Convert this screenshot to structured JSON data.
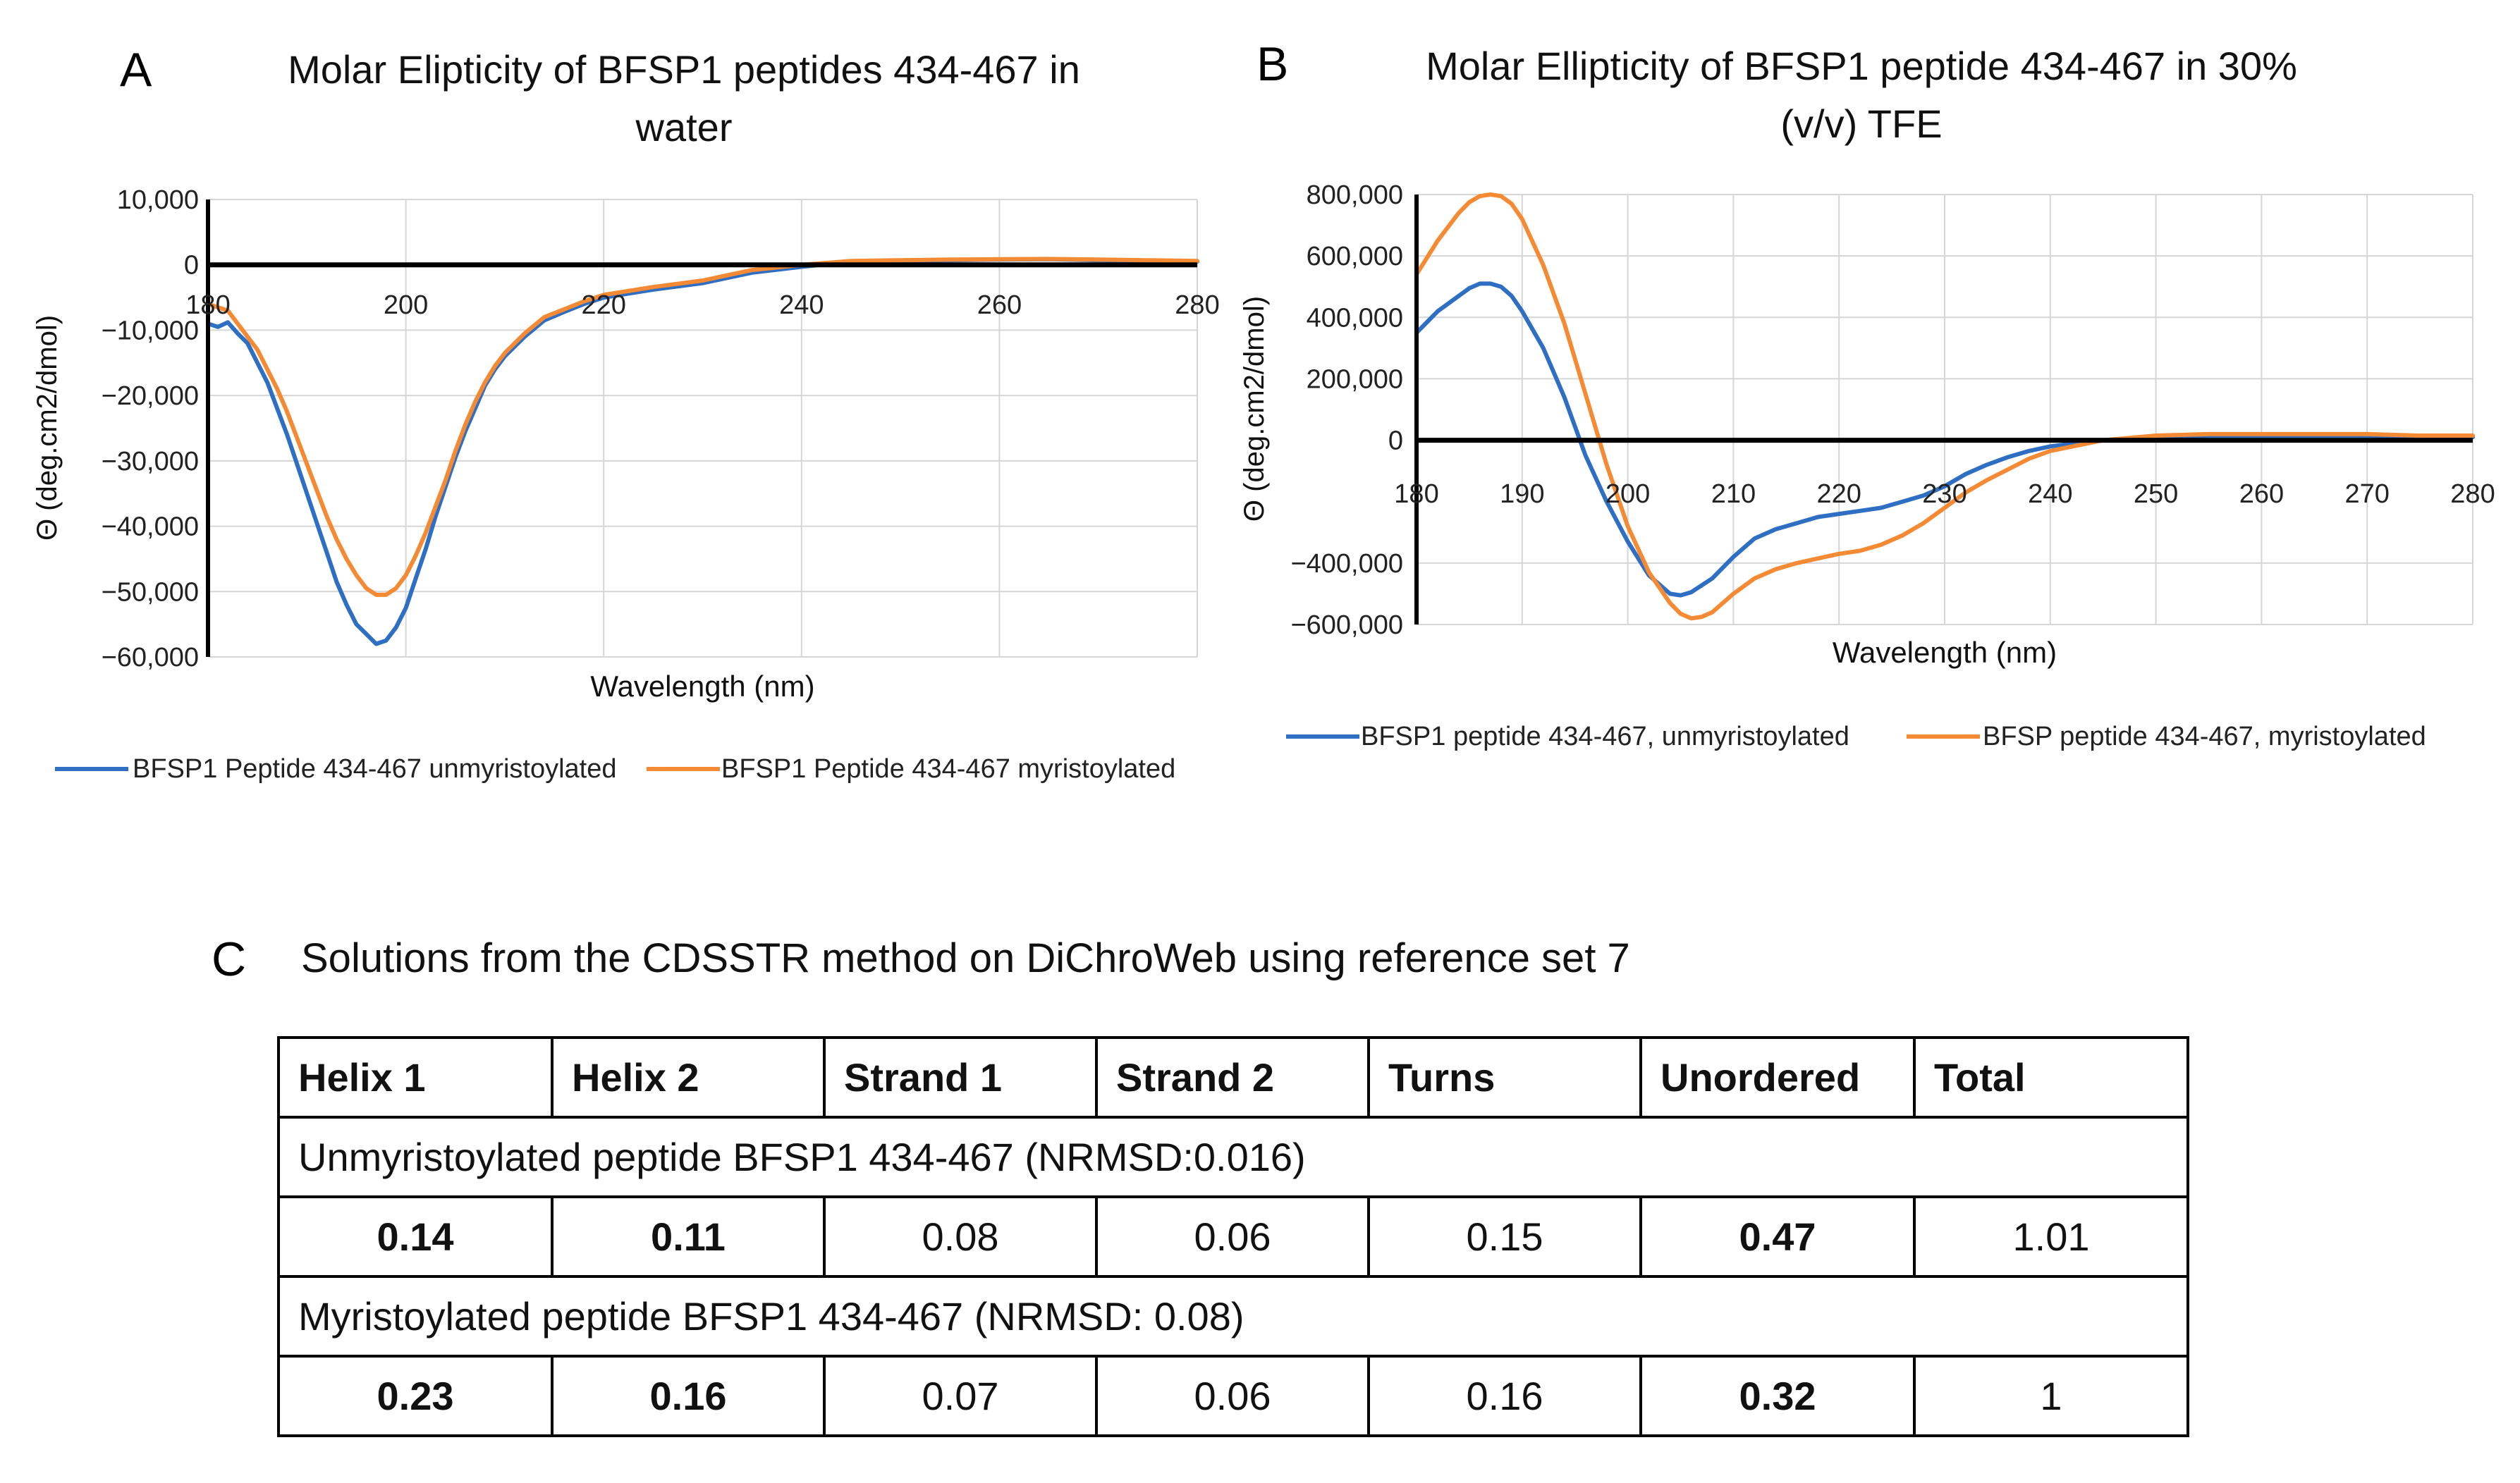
{
  "panels": {
    "a_letter": "A",
    "b_letter": "B",
    "c_letter": "C"
  },
  "chart_data": [
    {
      "type": "line",
      "title": "Molar Elipticity of BFSP1 peptides 434-467 in water",
      "title_lines": [
        "Molar Elipticity of BFSP1 peptides 434-467 in",
        "water"
      ],
      "xlabel": "Wavelength (nm)",
      "ylabel": "Θ (deg.cm2/dmol)",
      "xlim": [
        180,
        280
      ],
      "ylim": [
        -60000,
        10000
      ],
      "xticks": [
        180,
        200,
        220,
        240,
        260,
        280
      ],
      "xtick_labels": [
        "180",
        "200",
        "220",
        "240",
        "260",
        "280"
      ],
      "yticks": [
        10000,
        0,
        -10000,
        -20000,
        -30000,
        -40000,
        -50000,
        -60000
      ],
      "ytick_labels": [
        "10,000",
        "0",
        "−10,000",
        "−20,000",
        "−30,000",
        "−40,000",
        "−50,000",
        "−60,000"
      ],
      "grid": true,
      "legend": "bottom",
      "series": [
        {
          "name": "BFSP1 Peptide 434-467 unmyristoylated",
          "color": "#2e6fc4",
          "x": [
            180,
            181,
            182,
            183,
            184,
            185,
            186,
            187,
            188,
            189,
            190,
            191,
            192,
            193,
            194,
            195,
            196,
            197,
            198,
            199,
            200,
            201,
            202,
            203,
            204,
            205,
            206,
            207,
            208,
            209,
            210,
            212,
            214,
            216,
            218,
            220,
            225,
            230,
            235,
            240,
            245,
            250,
            255,
            260,
            265,
            270,
            275,
            280
          ],
          "y": [
            -9000,
            -9500,
            -8800,
            -10500,
            -12000,
            -15000,
            -18000,
            -22000,
            -26000,
            -30500,
            -35000,
            -39500,
            -44000,
            -48500,
            -52000,
            -55000,
            -56500,
            -58000,
            -57500,
            -55500,
            -52500,
            -48000,
            -43500,
            -38500,
            -34000,
            -29500,
            -25500,
            -22000,
            -18500,
            -16000,
            -14000,
            -11000,
            -8500,
            -7200,
            -6000,
            -5000,
            -3800,
            -2800,
            -1200,
            -300,
            500,
            600,
            700,
            800,
            850,
            700,
            600,
            500
          ]
        },
        {
          "name": "BFSP1 Peptide 434-467 myristoylated",
          "color": "#f58a34",
          "x": [
            180,
            181,
            182,
            183,
            184,
            185,
            186,
            187,
            188,
            189,
            190,
            191,
            192,
            193,
            194,
            195,
            196,
            197,
            198,
            199,
            200,
            201,
            202,
            203,
            204,
            205,
            206,
            207,
            208,
            209,
            210,
            212,
            214,
            216,
            218,
            220,
            225,
            230,
            235,
            240,
            245,
            250,
            255,
            260,
            265,
            270,
            275,
            280
          ],
          "y": [
            -6000,
            -6500,
            -7000,
            -9000,
            -11000,
            -13000,
            -16000,
            -19000,
            -22500,
            -26500,
            -30500,
            -34500,
            -38500,
            -42000,
            -45000,
            -47500,
            -49500,
            -50500,
            -50500,
            -49500,
            -47500,
            -44500,
            -41000,
            -37000,
            -33000,
            -28500,
            -24500,
            -21000,
            -18000,
            -15500,
            -13500,
            -10500,
            -8000,
            -6800,
            -5600,
            -4600,
            -3400,
            -2400,
            -800,
            0,
            600,
            700,
            800,
            850,
            900,
            800,
            700,
            600
          ]
        }
      ]
    },
    {
      "type": "line",
      "title": "Molar Ellipticity of  BFSP1 peptide 434-467 in 30% (v/v) TFE",
      "title_lines": [
        "Molar Ellipticity of  BFSP1 peptide 434-467 in 30%",
        "(v/v) TFE"
      ],
      "xlabel": "Wavelength (nm)",
      "ylabel": "Θ (deg.cm2/dmol)",
      "xlim": [
        180,
        280
      ],
      "ylim": [
        -600000,
        800000
      ],
      "xticks": [
        180,
        190,
        200,
        210,
        220,
        230,
        240,
        250,
        260,
        270,
        280
      ],
      "xtick_labels": [
        "180",
        "190",
        "200",
        "210",
        "220",
        "230",
        "240",
        "250",
        "260",
        "270",
        "280"
      ],
      "yticks": [
        800000,
        600000,
        400000,
        200000,
        0,
        -400000,
        -600000
      ],
      "ytick_labels": [
        "800,000",
        "600,000",
        "400,000",
        "200,000",
        "0",
        "−400,000",
        "−600,000"
      ],
      "grid": true,
      "legend": "bottom",
      "series": [
        {
          "name": "BFSP1 peptide 434-467, unmyristoylated",
          "color": "#2e6fc4",
          "x": [
            180,
            182,
            184,
            185,
            186,
            187,
            188,
            189,
            190,
            192,
            194,
            196,
            198,
            200,
            202,
            204,
            205,
            206,
            208,
            210,
            212,
            214,
            216,
            218,
            220,
            222,
            224,
            226,
            228,
            230,
            232,
            234,
            236,
            238,
            240,
            245,
            250,
            255,
            260,
            265,
            270,
            275,
            280
          ],
          "y": [
            350000,
            420000,
            470000,
            495000,
            510000,
            510000,
            500000,
            470000,
            420000,
            300000,
            140000,
            -50000,
            -200000,
            -330000,
            -440000,
            -500000,
            -505000,
            -495000,
            -450000,
            -380000,
            -320000,
            -290000,
            -270000,
            -250000,
            -240000,
            -230000,
            -220000,
            -200000,
            -180000,
            -150000,
            -110000,
            -80000,
            -55000,
            -35000,
            -20000,
            0,
            10000,
            15000,
            15000,
            15000,
            15000,
            10000,
            10000
          ]
        },
        {
          "name": "BFSP peptide 434-467, myristoylated",
          "color": "#f58a34",
          "x": [
            180,
            182,
            184,
            185,
            186,
            187,
            188,
            189,
            190,
            192,
            194,
            196,
            198,
            200,
            202,
            204,
            205,
            206,
            207,
            208,
            210,
            212,
            214,
            216,
            218,
            220,
            222,
            224,
            226,
            228,
            230,
            232,
            234,
            236,
            238,
            240,
            245,
            250,
            255,
            260,
            265,
            270,
            275,
            280
          ],
          "y": [
            540000,
            650000,
            740000,
            775000,
            795000,
            800000,
            795000,
            770000,
            720000,
            570000,
            380000,
            150000,
            -80000,
            -280000,
            -430000,
            -530000,
            -565000,
            -580000,
            -575000,
            -560000,
            -500000,
            -450000,
            -420000,
            -400000,
            -385000,
            -370000,
            -360000,
            -340000,
            -310000,
            -270000,
            -220000,
            -170000,
            -130000,
            -95000,
            -60000,
            -35000,
            0,
            15000,
            20000,
            20000,
            20000,
            20000,
            15000,
            15000
          ]
        }
      ]
    }
  ],
  "table": {
    "caption": "Solutions from the CDSSTR method on DiChroWeb using reference set 7",
    "headers": [
      "Helix 1",
      "Helix 2",
      "Strand 1",
      "Strand 2",
      "Turns",
      "Unordered",
      "Total"
    ],
    "section1_label": "Unmyristoylated peptide   BFSP1 434-467 (NRMSD:0.016)",
    "row1": [
      "0.14",
      "0.11",
      "0.08",
      "0.06",
      "0.15",
      "0.47",
      "1.01"
    ],
    "section2_label": "Myristoylated peptide BFSP1 434-467 (NRMSD: 0.08)",
    "row2": [
      "0.23",
      "0.16",
      "0.07",
      "0.06",
      "0.16",
      "0.32",
      "1"
    ]
  }
}
